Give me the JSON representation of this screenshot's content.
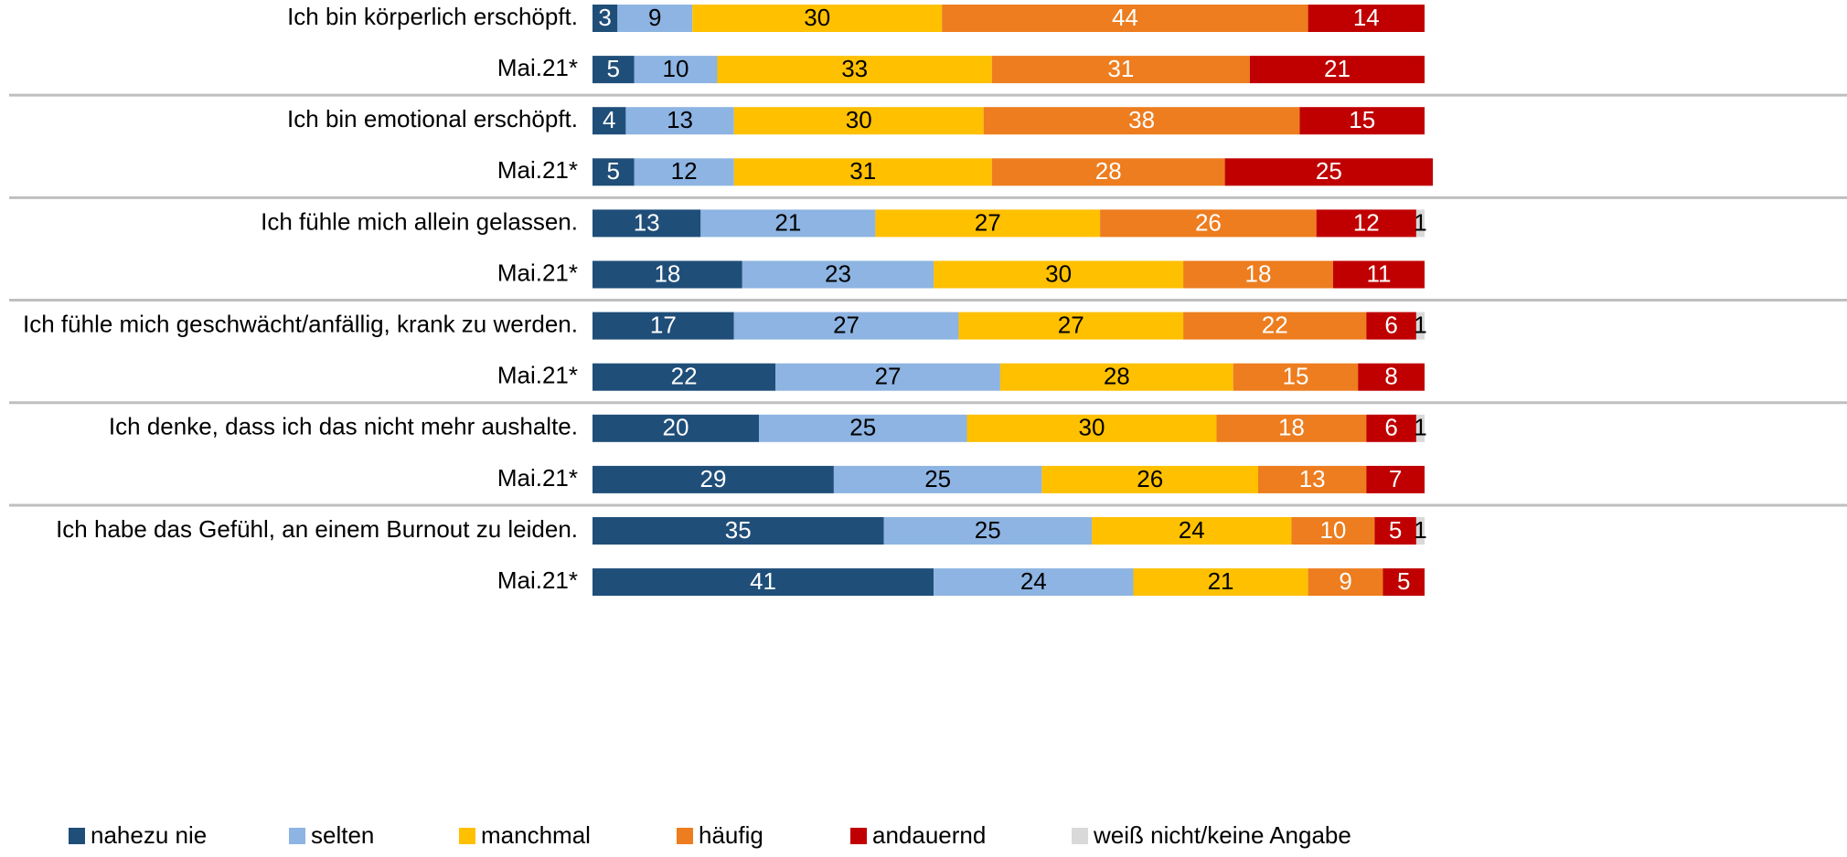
{
  "chart_data": {
    "type": "stacked-bar-horizontal",
    "categories": [
      "Ich bin körperlich erschöpft.",
      "Mai.21*",
      "Ich bin emotional erschöpft.",
      "Mai.21*",
      "Ich fühle mich allein gelassen.",
      "Mai.21*",
      "Ich fühle mich geschwächt/anfällig, krank zu werden.",
      "Mai.21*",
      "Ich denke, dass ich das nicht mehr aushalte.",
      "Mai.21*",
      "Ich habe das Gefühl, an einem Burnout zu leiden.",
      "Mai.21*"
    ],
    "xlim": [
      0,
      100
    ],
    "series": [
      {
        "name": "nahezu nie",
        "color": "#1f4e79",
        "label_color": "#ffffff",
        "values": [
          3,
          5,
          4,
          5,
          13,
          18,
          17,
          22,
          20,
          29,
          35,
          41
        ]
      },
      {
        "name": "selten",
        "color": "#8db4e2",
        "label_color": "#000000",
        "values": [
          9,
          10,
          13,
          12,
          21,
          23,
          27,
          27,
          25,
          25,
          25,
          24
        ]
      },
      {
        "name": "manchmal",
        "color": "#ffc000",
        "label_color": "#000000",
        "values": [
          30,
          33,
          30,
          31,
          27,
          30,
          27,
          28,
          30,
          26,
          24,
          21
        ]
      },
      {
        "name": "häufig",
        "color": "#ed7d1f",
        "label_color": "#ffffff",
        "values": [
          44,
          31,
          38,
          28,
          26,
          18,
          22,
          15,
          18,
          13,
          10,
          9
        ]
      },
      {
        "name": "andauernd",
        "color": "#c00000",
        "label_color": "#ffffff",
        "values": [
          14,
          21,
          15,
          25,
          12,
          11,
          6,
          8,
          6,
          7,
          5,
          5
        ]
      },
      {
        "name": "weiß nicht/keine Angabe",
        "color": "#d9d9d9",
        "label_color": "#000000",
        "values": [
          null,
          null,
          null,
          null,
          1,
          null,
          1,
          null,
          1,
          null,
          1,
          null
        ]
      }
    ],
    "legend": "bottom"
  }
}
